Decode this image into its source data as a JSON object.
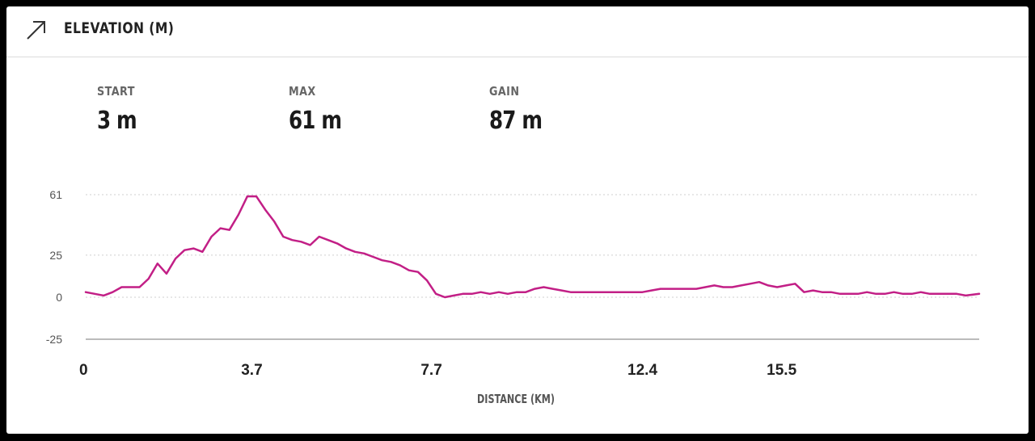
{
  "header": {
    "title": "ELEVATION (M)",
    "icon": "arrow-up-right-icon"
  },
  "stats": [
    {
      "label": "START",
      "value": "3 m"
    },
    {
      "label": "MAX",
      "value": "61 m"
    },
    {
      "label": "GAIN",
      "value": "87 m"
    }
  ],
  "chart_data": {
    "type": "line",
    "title": "",
    "xlabel": "DISTANCE (KM)",
    "ylabel": "",
    "x_ticks": [
      "0",
      "3.7",
      "7.7",
      "12.4",
      "15.5"
    ],
    "y_ticks": [
      "61",
      "25",
      "0",
      "-25"
    ],
    "ylim": [
      -25,
      61
    ],
    "xlim": [
      0,
      19.9
    ],
    "grid": "horizontal dotted",
    "series": [
      {
        "color": "#c21f86",
        "x": [
          0,
          0.2,
          0.4,
          0.6,
          0.8,
          1.0,
          1.2,
          1.4,
          1.6,
          1.8,
          2.0,
          2.2,
          2.4,
          2.6,
          2.8,
          3.0,
          3.2,
          3.4,
          3.6,
          3.8,
          4.0,
          4.2,
          4.4,
          4.6,
          4.8,
          5.0,
          5.2,
          5.4,
          5.6,
          5.8,
          6.0,
          6.2,
          6.4,
          6.6,
          6.8,
          7.0,
          7.2,
          7.4,
          7.6,
          7.8,
          8.0,
          8.2,
          8.4,
          8.6,
          8.8,
          9.0,
          9.2,
          9.4,
          9.6,
          9.8,
          10.0,
          10.2,
          10.4,
          10.6,
          10.8,
          11.0,
          11.2,
          11.4,
          11.6,
          11.8,
          12.0,
          12.2,
          12.4,
          12.6,
          12.8,
          13.0,
          13.2,
          13.4,
          13.6,
          13.8,
          14.0,
          14.2,
          14.4,
          14.6,
          14.8,
          15.0,
          15.2,
          15.4,
          15.6,
          15.8,
          16.0,
          16.2,
          16.4,
          16.6,
          16.8,
          17.0,
          17.2,
          17.4,
          17.6,
          17.8,
          18.0,
          18.2,
          18.4,
          18.6,
          18.8,
          19.0,
          19.2,
          19.4,
          19.6,
          19.9
        ],
        "values": [
          3,
          2,
          1,
          3,
          6,
          6,
          6,
          11,
          20,
          14,
          23,
          28,
          29,
          27,
          36,
          41,
          40,
          49,
          60,
          60,
          52,
          45,
          36,
          34,
          33,
          31,
          36,
          34,
          32,
          29,
          27,
          26,
          24,
          22,
          21,
          19,
          16,
          15,
          10,
          2,
          0,
          1,
          2,
          2,
          3,
          2,
          3,
          2,
          3,
          3,
          5,
          6,
          5,
          4,
          3,
          3,
          3,
          3,
          3,
          3,
          3,
          3,
          3,
          4,
          5,
          5,
          5,
          5,
          5,
          6,
          7,
          6,
          6,
          7,
          8,
          9,
          7,
          6,
          7,
          8,
          3,
          4,
          3,
          3,
          2,
          2,
          2,
          3,
          2,
          2,
          3,
          2,
          2,
          3,
          2,
          2,
          2,
          2,
          1,
          2
        ]
      }
    ]
  }
}
